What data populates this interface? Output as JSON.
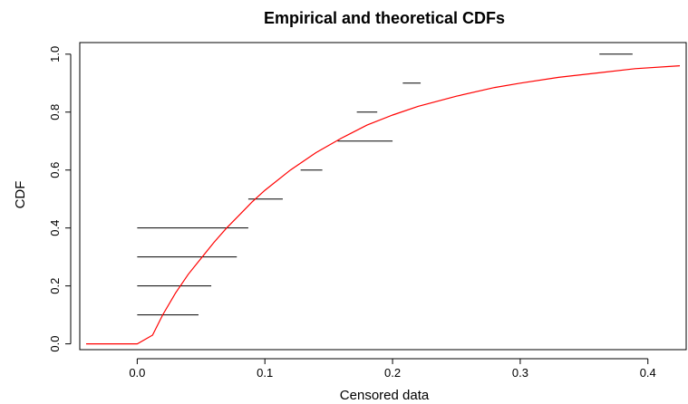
{
  "chart_data": {
    "type": "line",
    "title": "Empirical and theoretical CDFs",
    "xlabel": "Censored data",
    "ylabel": "CDF",
    "xlim": [
      -0.045,
      0.43
    ],
    "ylim": [
      -0.02,
      1.04
    ],
    "grid": false,
    "legend": "none",
    "x_ticks": [
      0.0,
      0.1,
      0.2,
      0.3,
      0.4
    ],
    "x_tick_labels": [
      "0.0",
      "0.1",
      "0.2",
      "0.3",
      "0.4"
    ],
    "y_ticks": [
      0.0,
      0.2,
      0.4,
      0.6,
      0.8,
      1.0
    ],
    "y_tick_labels": [
      "0.0",
      "0.2",
      "0.4",
      "0.6",
      "0.8",
      "1.0"
    ],
    "series": [
      {
        "kind": "intervals",
        "color": "#000000",
        "segments": [
          {
            "x0": 0.0,
            "x1": 0.048,
            "y": 0.1
          },
          {
            "x0": 0.0,
            "x1": 0.058,
            "y": 0.2
          },
          {
            "x0": 0.0,
            "x1": 0.078,
            "y": 0.3
          },
          {
            "x0": 0.0,
            "x1": 0.087,
            "y": 0.4
          },
          {
            "x0": 0.087,
            "x1": 0.114,
            "y": 0.5
          },
          {
            "x0": 0.128,
            "x1": 0.145,
            "y": 0.6
          },
          {
            "x0": 0.157,
            "x1": 0.2,
            "y": 0.7
          },
          {
            "x0": 0.172,
            "x1": 0.188,
            "y": 0.8
          },
          {
            "x0": 0.208,
            "x1": 0.222,
            "y": 0.9
          },
          {
            "x0": 0.362,
            "x1": 0.388,
            "y": 1.0
          }
        ]
      },
      {
        "kind": "curve",
        "color": "#ff0000",
        "x": [
          -0.04,
          0.0,
          0.012,
          0.02,
          0.03,
          0.04,
          0.05,
          0.06,
          0.07,
          0.08,
          0.09,
          0.1,
          0.12,
          0.14,
          0.16,
          0.18,
          0.2,
          0.22,
          0.25,
          0.28,
          0.3,
          0.33,
          0.36,
          0.39,
          0.425
        ],
        "y": [
          0.0,
          0.0,
          0.03,
          0.1,
          0.175,
          0.24,
          0.295,
          0.35,
          0.4,
          0.445,
          0.49,
          0.53,
          0.6,
          0.66,
          0.71,
          0.755,
          0.79,
          0.82,
          0.855,
          0.885,
          0.9,
          0.92,
          0.935,
          0.95,
          0.96
        ]
      }
    ]
  }
}
